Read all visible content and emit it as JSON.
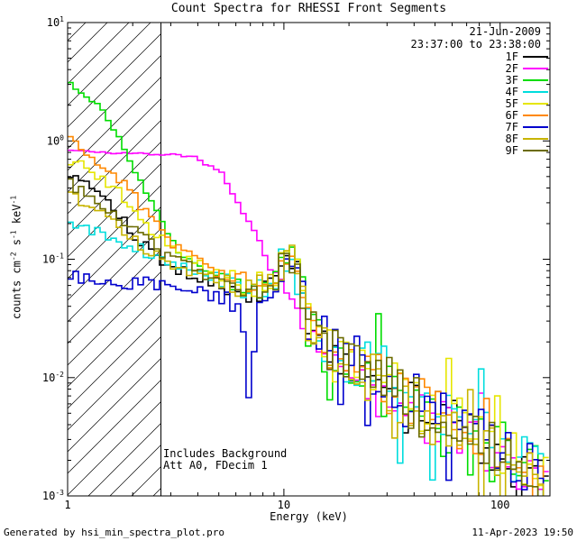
{
  "chart_data": {
    "type": "line",
    "title": "Count Spectra for RHESSI Front Segments",
    "date": "21-Jun-2009",
    "time_range": "23:37:00 to 23:38:00",
    "xlabel": "Energy (keV)",
    "ylabel": "counts cm^-2 s^-1 keV^-1",
    "ylabel_parts": [
      {
        "t": "counts cm",
        "sup": "-2"
      },
      {
        "t": " s",
        "sup": "-1"
      },
      {
        "t": " keV",
        "sup": "-1"
      }
    ],
    "x_scale": "log",
    "y_scale": "log",
    "xlim": [
      1,
      170
    ],
    "ylim": [
      0.001,
      10
    ],
    "x_ticks": [
      {
        "value": 1,
        "label": "1"
      },
      {
        "value": 10,
        "label": "10"
      },
      {
        "value": 100,
        "label": "100"
      }
    ],
    "y_ticks": [
      {
        "value": 10,
        "base": "10",
        "exp": "1"
      },
      {
        "value": 1,
        "base": "10",
        "exp": "0"
      },
      {
        "value": 0.1,
        "base": "10",
        "exp": "-1"
      },
      {
        "value": 0.01,
        "base": "10",
        "exp": "-2"
      },
      {
        "value": 0.001,
        "base": "10",
        "exp": "-3"
      }
    ],
    "hatch_region": {
      "xmin": 1,
      "xmax": 2.7
    },
    "annotations": [
      "Includes Background",
      "Att A0, FDecim 1"
    ],
    "legend_position": "top-right",
    "bins_per_decade": 40,
    "tail": [
      [
        13,
        0.028
      ],
      [
        16,
        0.018
      ],
      [
        20,
        0.0135
      ],
      [
        26,
        0.01
      ],
      [
        34,
        0.0074
      ],
      [
        45,
        0.0054
      ],
      [
        60,
        0.004
      ],
      [
        80,
        0.003
      ],
      [
        105,
        0.0023
      ],
      [
        135,
        0.0017
      ],
      [
        170,
        0.0013
      ]
    ],
    "series": [
      {
        "name": "1F",
        "color": "#000000",
        "seed": 101,
        "noise_low_dex": 0.05,
        "noise_high_dex": 0.22,
        "tail_mult": 1.0,
        "anchors": [
          [
            1,
            0.55
          ],
          [
            1.3,
            0.42
          ],
          [
            1.6,
            0.3
          ],
          [
            2,
            0.17
          ],
          [
            2.5,
            0.11
          ],
          [
            3,
            0.085
          ],
          [
            4,
            0.07
          ],
          [
            5,
            0.06
          ],
          [
            6,
            0.055
          ],
          [
            7,
            0.05
          ],
          [
            8,
            0.055
          ],
          [
            9,
            0.065
          ],
          [
            10,
            0.09
          ],
          [
            10.8,
            0.105
          ],
          [
            11.5,
            0.08
          ],
          [
            12.5,
            0.04
          ]
        ]
      },
      {
        "name": "2F",
        "color": "#ff00ff",
        "seed": 202,
        "noise_low_dex": 0.01,
        "noise_high_dex": 0.2,
        "tail_mult": 0.9,
        "anchors": [
          [
            1,
            0.85
          ],
          [
            1.5,
            0.8
          ],
          [
            2,
            0.78
          ],
          [
            3,
            0.77
          ],
          [
            4,
            0.72
          ],
          [
            5,
            0.55
          ],
          [
            6,
            0.33
          ],
          [
            7,
            0.19
          ],
          [
            8,
            0.11
          ],
          [
            9,
            0.07
          ],
          [
            10,
            0.05
          ],
          [
            11,
            0.04
          ],
          [
            12.5,
            0.028
          ]
        ]
      },
      {
        "name": "3F",
        "color": "#00dd00",
        "seed": 303,
        "noise_low_dex": 0.02,
        "noise_high_dex": 0.3,
        "tail_mult": 0.9,
        "anchors": [
          [
            1,
            3.1
          ],
          [
            1.4,
            2.0
          ],
          [
            1.7,
            1.15
          ],
          [
            2,
            0.6
          ],
          [
            2.4,
            0.33
          ],
          [
            2.8,
            0.19
          ],
          [
            3.2,
            0.12
          ],
          [
            4,
            0.085
          ],
          [
            5,
            0.07
          ],
          [
            6,
            0.06
          ],
          [
            7,
            0.055
          ],
          [
            8,
            0.06
          ],
          [
            9,
            0.07
          ],
          [
            10,
            0.095
          ],
          [
            10.8,
            0.11
          ],
          [
            11.5,
            0.085
          ],
          [
            12.5,
            0.04
          ]
        ]
      },
      {
        "name": "4F",
        "color": "#00dddd",
        "seed": 404,
        "noise_low_dex": 0.06,
        "noise_high_dex": 0.3,
        "tail_mult": 1.1,
        "anchors": [
          [
            1,
            0.22
          ],
          [
            1.4,
            0.16
          ],
          [
            1.8,
            0.13
          ],
          [
            2.2,
            0.12
          ],
          [
            2.7,
            0.1
          ],
          [
            3.5,
            0.08
          ],
          [
            5,
            0.065
          ],
          [
            7,
            0.055
          ],
          [
            8.5,
            0.065
          ],
          [
            10,
            0.09
          ],
          [
            10.8,
            0.1
          ],
          [
            11.5,
            0.075
          ],
          [
            12.5,
            0.04
          ]
        ]
      },
      {
        "name": "5F",
        "color": "#e6e600",
        "seed": 505,
        "noise_low_dex": 0.05,
        "noise_high_dex": 0.24,
        "tail_mult": 1.05,
        "anchors": [
          [
            1,
            0.72
          ],
          [
            1.3,
            0.55
          ],
          [
            1.7,
            0.38
          ],
          [
            2,
            0.27
          ],
          [
            2.5,
            0.17
          ],
          [
            3,
            0.12
          ],
          [
            4,
            0.09
          ],
          [
            5,
            0.075
          ],
          [
            6,
            0.065
          ],
          [
            7,
            0.06
          ],
          [
            8,
            0.062
          ],
          [
            9,
            0.072
          ],
          [
            10,
            0.095
          ],
          [
            10.8,
            0.11
          ],
          [
            11.5,
            0.085
          ],
          [
            12.5,
            0.045
          ]
        ]
      },
      {
        "name": "6F",
        "color": "#ff8800",
        "seed": 606,
        "noise_low_dex": 0.05,
        "noise_high_dex": 0.24,
        "tail_mult": 1.0,
        "anchors": [
          [
            1,
            1.0
          ],
          [
            1.3,
            0.75
          ],
          [
            1.7,
            0.5
          ],
          [
            2,
            0.35
          ],
          [
            2.5,
            0.22
          ],
          [
            3,
            0.14
          ],
          [
            4,
            0.1
          ],
          [
            5,
            0.08
          ],
          [
            6,
            0.07
          ],
          [
            7,
            0.06
          ],
          [
            8,
            0.062
          ],
          [
            9,
            0.07
          ],
          [
            10,
            0.09
          ],
          [
            10.8,
            0.105
          ],
          [
            11.5,
            0.08
          ],
          [
            12.5,
            0.042
          ]
        ]
      },
      {
        "name": "7F",
        "color": "#0000cd",
        "seed": 707,
        "noise_low_dex": 0.06,
        "noise_high_dex": 0.26,
        "tail_mult": 1.1,
        "anchors": [
          [
            1,
            0.075
          ],
          [
            1.4,
            0.06
          ],
          [
            1.8,
            0.055
          ],
          [
            2.2,
            0.065
          ],
          [
            2.7,
            0.06
          ],
          [
            3.5,
            0.055
          ],
          [
            4.5,
            0.05
          ],
          [
            5.5,
            0.048
          ],
          [
            6.5,
            0.03
          ],
          [
            7,
            0.0045
          ],
          [
            7.4,
            0.03
          ],
          [
            8,
            0.05
          ],
          [
            9,
            0.06
          ],
          [
            10,
            0.08
          ],
          [
            10.8,
            0.09
          ],
          [
            11.5,
            0.07
          ],
          [
            12.5,
            0.038
          ]
        ]
      },
      {
        "name": "8F",
        "color": "#c8b400",
        "seed": 808,
        "noise_low_dex": 0.05,
        "noise_high_dex": 0.24,
        "tail_mult": 0.95,
        "anchors": [
          [
            1,
            0.36
          ],
          [
            1.3,
            0.28
          ],
          [
            1.7,
            0.2
          ],
          [
            2,
            0.15
          ],
          [
            2.5,
            0.11
          ],
          [
            3,
            0.09
          ],
          [
            4,
            0.075
          ],
          [
            5,
            0.065
          ],
          [
            6,
            0.058
          ],
          [
            7,
            0.055
          ],
          [
            8,
            0.06
          ],
          [
            9,
            0.068
          ],
          [
            10,
            0.09
          ],
          [
            10.8,
            0.1
          ],
          [
            11.5,
            0.078
          ],
          [
            12.5,
            0.04
          ]
        ]
      },
      {
        "name": "9F",
        "color": "#6b6b00",
        "seed": 909,
        "noise_low_dex": 0.05,
        "noise_high_dex": 0.26,
        "tail_mult": 1.0,
        "anchors": [
          [
            1,
            0.45
          ],
          [
            1.3,
            0.33
          ],
          [
            1.7,
            0.24
          ],
          [
            2,
            0.18
          ],
          [
            2.5,
            0.13
          ],
          [
            3,
            0.1
          ],
          [
            4,
            0.08
          ],
          [
            5,
            0.068
          ],
          [
            6,
            0.06
          ],
          [
            7,
            0.056
          ],
          [
            8,
            0.06
          ],
          [
            9,
            0.07
          ],
          [
            10,
            0.092
          ],
          [
            10.8,
            0.105
          ],
          [
            11.5,
            0.08
          ],
          [
            12.5,
            0.041
          ]
        ]
      }
    ]
  },
  "footer": {
    "left": "Generated by hsi_min_spectra_plot.pro",
    "right": "11-Apr-2023 19:50"
  }
}
